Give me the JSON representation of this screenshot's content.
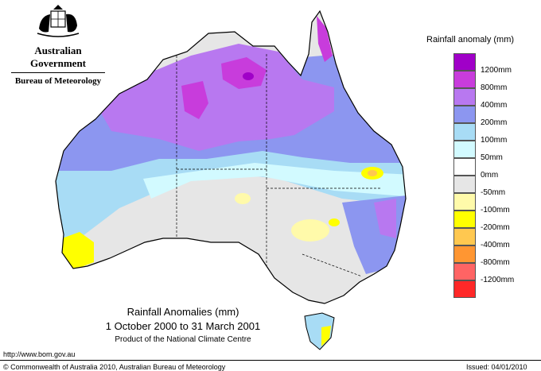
{
  "header": {
    "government": "Australian Government",
    "bureau": "Bureau of Meteorology"
  },
  "map": {
    "title": "Rainfall Anomalies (mm)",
    "period": "1 October 2000 to 31 March 2001",
    "product": "Product of the National Climate Centre"
  },
  "legend": {
    "title": "Rainfall anomaly (mm)",
    "items": [
      {
        "label": "1200mm",
        "color": "#a000c8"
      },
      {
        "label": "800mm",
        "color": "#c83cdc"
      },
      {
        "label": "400mm",
        "color": "#b878f0"
      },
      {
        "label": "200mm",
        "color": "#8c96f0"
      },
      {
        "label": "100mm",
        "color": "#a8dcf5"
      },
      {
        "label": "50mm",
        "color": "#d2faff"
      },
      {
        "label": "0mm",
        "color": "#ffffff"
      },
      {
        "label": "-50mm",
        "color": "#e6e6e6"
      },
      {
        "label": "-100mm",
        "color": "#fffaaa"
      },
      {
        "label": "-200mm",
        "color": "#ffff00"
      },
      {
        "label": "-400mm",
        "color": "#ffc850"
      },
      {
        "label": "-800mm",
        "color": "#ff9632"
      },
      {
        "label": "-1200mm",
        "color": "#ff6464"
      },
      {
        "label": "",
        "color": "#ff2828"
      }
    ]
  },
  "footer": {
    "url": "http://www.bom.gov.au",
    "copyright": "© Commonwealth of Australia 2010, Australian Bureau of Meteorology",
    "issued": "Issued: 04/01/2010"
  }
}
